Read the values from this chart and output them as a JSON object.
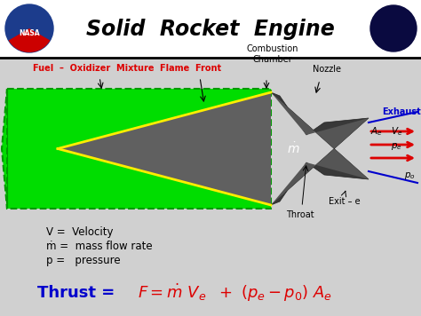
{
  "title": "Solid  Rocket  Engine",
  "bg_color": "#d0d0d0",
  "header_bg": "#ffffff",
  "green_fill": "#00dd00",
  "dark_gray": "#404040",
  "nozzle_gray": "#383838",
  "yellow": "#ffee00",
  "red": "#dd0000",
  "blue": "#0000cc",
  "black": "#000000",
  "white": "#ffffff",
  "label_fuel": "Fuel  –  Oxidizer  Mixture",
  "label_flame": "Flame  Front",
  "label_combustion": "Combustion\nChamber",
  "label_nozzle": "Nozzle",
  "label_exhaust": "Exhaust",
  "label_exit": "Exit – e",
  "label_throat": "Throat",
  "label_v": "V =  Velocity",
  "label_mdot": "ṁ =  mass flow rate",
  "label_p": "p =   pressure",
  "thrust_label": "Thrust =",
  "thrust_eq": "$F = \\dot{m}\\ V_e\\ \\ +\\ (p_e - p_0)\\ A_e$"
}
